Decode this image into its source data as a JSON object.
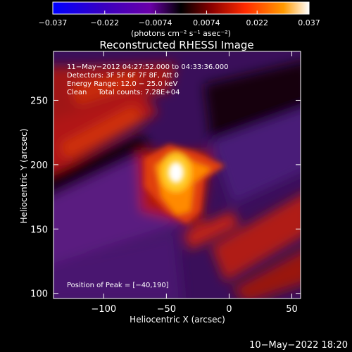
{
  "chart_data": {
    "type": "heatmap",
    "title": "Reconstructed RHESSI Image",
    "xlabel": "Heliocentric X (arcsec)",
    "ylabel": "Heliocentric Y (arcsec)",
    "xlim": [
      -140,
      57
    ],
    "ylim": [
      96,
      288
    ],
    "x_ticks": [
      -100,
      -50,
      0,
      50
    ],
    "y_ticks": [
      100,
      150,
      200,
      250
    ],
    "x_tick_labels": [
      "−100",
      "−50",
      "0",
      "50"
    ],
    "y_tick_labels": [
      "100",
      "150",
      "200",
      "250"
    ],
    "colorbar": {
      "range": [
        -0.037,
        0.037
      ],
      "ticks": [
        -0.037,
        -0.022,
        -0.0074,
        0.0074,
        0.022,
        0.037
      ],
      "tick_labels": [
        "−0.037",
        "−0.022",
        "−0.0074",
        "0.0074",
        "0.022",
        "0.037"
      ],
      "unit_label": "(photons cm⁻² s⁻¹ asec⁻²)",
      "colors": [
        "#0000ff",
        "#3a00c0",
        "#6a00a8",
        "#000000",
        "#8b0000",
        "#ff2a00",
        "#ff9a00",
        "#ffffff"
      ]
    },
    "annotations": [
      "11−May−2012 04:27:52.000 to 04:33:36.000",
      "Detectors: 3F 5F 6F 7F 8F, Att 0",
      "Energy Range: 12.0 − 25.0 keV",
      "Clean     Total counts: 7.28E+04"
    ],
    "peak_label": "Position of Peak = [−40,190]",
    "peak": {
      "x": -40,
      "y": 190,
      "value": 0.037
    },
    "grid": false
  },
  "footer": {
    "timestamp": "10−May−2022 18:20"
  }
}
